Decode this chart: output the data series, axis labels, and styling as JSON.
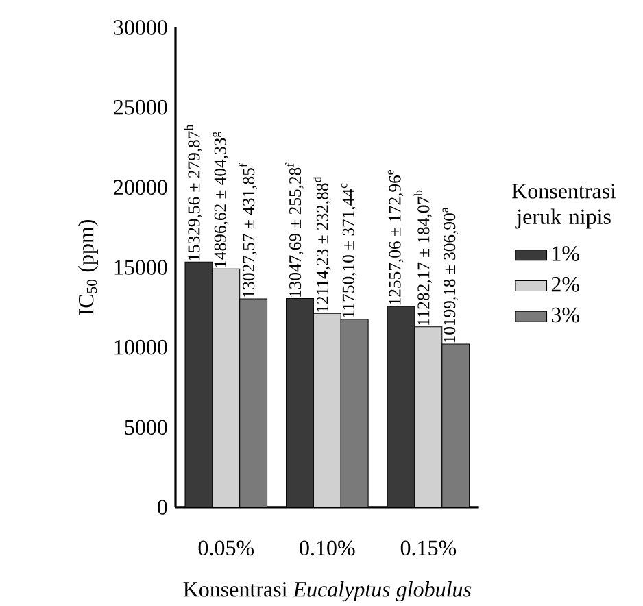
{
  "chart_data": {
    "type": "bar",
    "xlabel": "Konsentrasi *Eucalyptus globulus*",
    "ylabel": "IC$_{50}$ (ppm)",
    "legend_title": "Konsentrasi jeruk nipis",
    "legend": "right",
    "categories": [
      "0.05%",
      "0.10%",
      "0.15%"
    ],
    "ylim": [
      0,
      30000
    ],
    "yticks": [
      0,
      5000,
      10000,
      15000,
      20000,
      25000,
      30000
    ],
    "series": [
      {
        "name": "1%",
        "color": "#3a3a3a",
        "values": [
          15329.56,
          13047.69,
          12557.06
        ],
        "value_labels": [
          "15329,56 ± 279,87$^{h}$",
          "13047,69 ± 255,28$^{f}$",
          "12557,06 ± 172,96$^{e}$"
        ]
      },
      {
        "name": "2%",
        "color": "#d0d0d0",
        "values": [
          14896.62,
          12114.23,
          11282.17
        ],
        "value_labels": [
          "14896,62 ± 404,33$^{g}$",
          "12114,23 ± 232,88$^{d}$",
          "11282,17 ± 184,07$^{b}$"
        ]
      },
      {
        "name": "3%",
        "color": "#7a7a7a",
        "values": [
          13027.57,
          11750.1,
          10199.18
        ],
        "value_labels": [
          "13027,57 ± 431,85$^{f}$",
          "11750,10 ± 371,44$^{c}$",
          "10199,18 ± 306,90$^{a}$"
        ]
      }
    ]
  }
}
